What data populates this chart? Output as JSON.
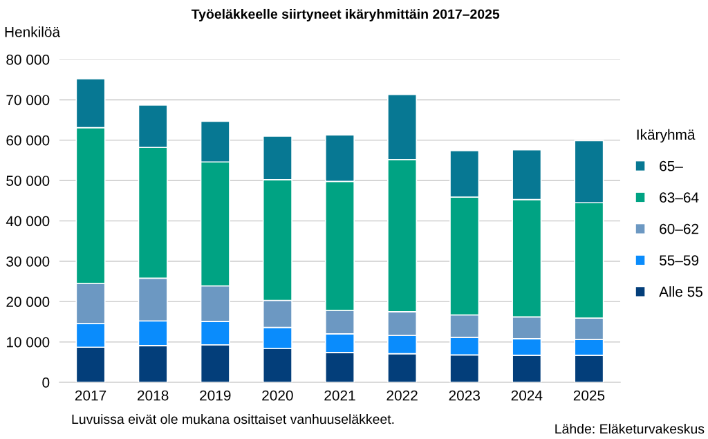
{
  "chart_data": {
    "type": "bar",
    "stacked": true,
    "title": "Työeläkkeelle siirtyneet ikäryhmittäin 2017–2025",
    "ylabel": "Henkilöä",
    "legend_title": "Ikäryhmä",
    "annotations": [
      "Luvuissa eivät ole mukana osittaiset vanhuuseläkkeet.",
      "Lähde: Eläketurvakeskus"
    ],
    "categories": [
      "2017",
      "2018",
      "2019",
      "2020",
      "2021",
      "2022",
      "2023",
      "2024",
      "2025"
    ],
    "series": [
      {
        "name": "Alle 55",
        "color": "#033e7a",
        "values": [
          8700,
          9100,
          9300,
          8400,
          7400,
          7100,
          6800,
          6700,
          6700
        ]
      },
      {
        "name": "55–59",
        "color": "#0a8cfc",
        "values": [
          5900,
          6100,
          5800,
          5200,
          4600,
          4500,
          4300,
          4100,
          3900
        ]
      },
      {
        "name": "60–62",
        "color": "#6c98c2",
        "values": [
          9900,
          10600,
          8800,
          6700,
          5800,
          5900,
          5600,
          5400,
          5300
        ]
      },
      {
        "name": "63–64",
        "color": "#00a383",
        "values": [
          38600,
          32400,
          30700,
          29900,
          32000,
          37700,
          29200,
          29100,
          28600
        ]
      },
      {
        "name": "65–",
        "color": "#077893",
        "values": [
          12100,
          10500,
          10100,
          10800,
          11500,
          16100,
          11500,
          12300,
          15400
        ]
      }
    ],
    "ylim": [
      0,
      80000
    ],
    "yticks": [
      0,
      {
        "value": 10000,
        "label": "10 000"
      },
      {
        "value": 20000,
        "label": "20 000"
      },
      {
        "value": 30000,
        "label": "30 000"
      },
      {
        "value": 40000,
        "label": "40 000"
      },
      {
        "value": 50000,
        "label": "50 000"
      },
      {
        "value": 60000,
        "label": "60 000"
      },
      {
        "value": 70000,
        "label": "70 000"
      },
      {
        "value": 80000,
        "label": "80 000"
      }
    ],
    "grid": "y",
    "legend": "right"
  }
}
